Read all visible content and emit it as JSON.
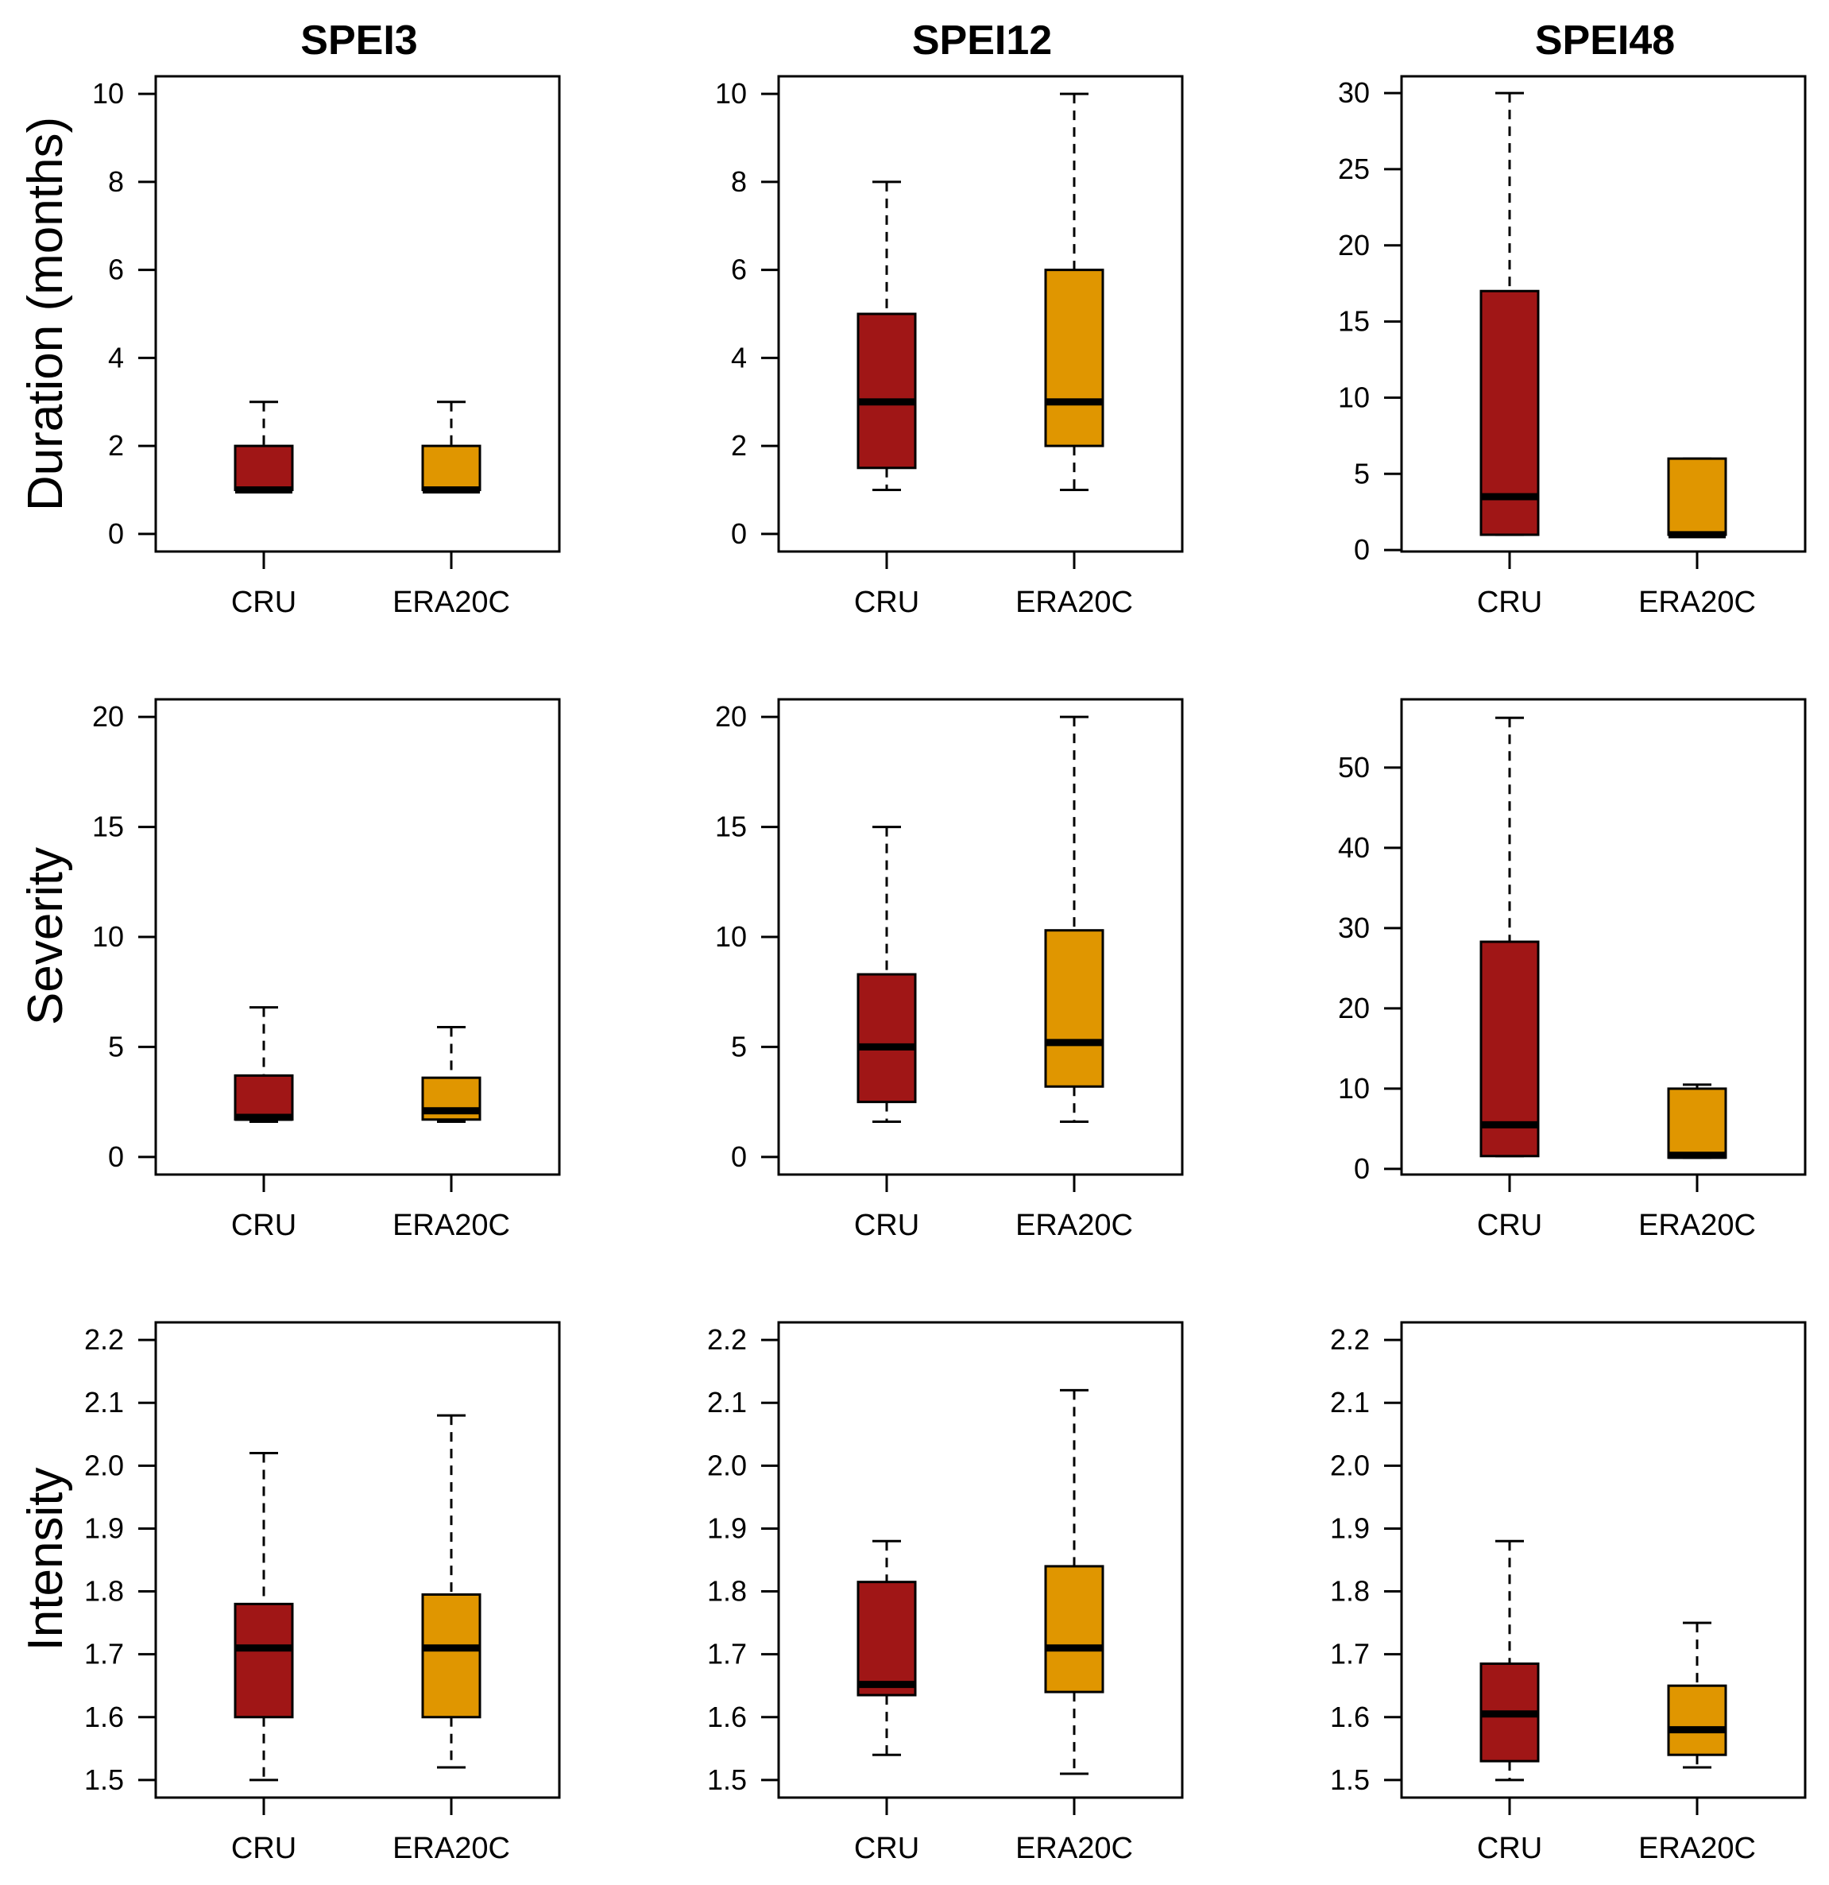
{
  "colors": {
    "CRU": "#a01616",
    "ERA20C": "#e09600",
    "median": "#000000",
    "frame": "#000000"
  },
  "columns": [
    "SPEI3",
    "SPEI12",
    "SPEI48"
  ],
  "rows": [
    "Duration (months)",
    "Severity",
    "Intensity"
  ],
  "chart_data": [
    {
      "type": "boxplot",
      "title": "SPEI3",
      "ylabel": "Duration (months)",
      "categories": [
        "CRU",
        "ERA20C"
      ],
      "ylim": [
        -0.4,
        10.4
      ],
      "yticks": [
        0,
        2,
        4,
        6,
        8,
        10
      ],
      "ytick_labels": [
        "0",
        "2",
        "4",
        "6",
        "8",
        "10"
      ],
      "boxes": [
        {
          "name": "CRU",
          "min": 1,
          "q1": 1,
          "median": 1,
          "q3": 2,
          "max": 3
        },
        {
          "name": "ERA20C",
          "min": 1,
          "q1": 1,
          "median": 1,
          "q3": 2,
          "max": 3
        }
      ]
    },
    {
      "type": "boxplot",
      "title": "SPEI12",
      "ylabel": "",
      "categories": [
        "CRU",
        "ERA20C"
      ],
      "ylim": [
        -0.4,
        10.4
      ],
      "yticks": [
        0,
        2,
        4,
        6,
        8,
        10
      ],
      "ytick_labels": [
        "0",
        "2",
        "4",
        "6",
        "8",
        "10"
      ],
      "boxes": [
        {
          "name": "CRU",
          "min": 1,
          "q1": 1.5,
          "median": 3,
          "q3": 5,
          "max": 8
        },
        {
          "name": "ERA20C",
          "min": 1,
          "q1": 2,
          "median": 3,
          "q3": 6,
          "max": 10
        }
      ]
    },
    {
      "type": "boxplot",
      "title": "SPEI48",
      "ylabel": "",
      "categories": [
        "CRU",
        "ERA20C"
      ],
      "ylim": [
        -0.1,
        31.1
      ],
      "yticks": [
        0,
        5,
        10,
        15,
        20,
        25,
        30
      ],
      "ytick_labels": [
        "0",
        "5",
        "10",
        "15",
        "20",
        "25",
        "30"
      ],
      "boxes": [
        {
          "name": "CRU",
          "min": 1,
          "q1": 1,
          "median": 3.5,
          "q3": 17,
          "max": 30
        },
        {
          "name": "ERA20C",
          "min": 1,
          "q1": 1,
          "median": 1,
          "q3": 6,
          "max": 6
        }
      ]
    },
    {
      "type": "boxplot",
      "title": "",
      "ylabel": "Severity",
      "categories": [
        "CRU",
        "ERA20C"
      ],
      "ylim": [
        -0.8,
        20.8
      ],
      "yticks": [
        0,
        5,
        10,
        15,
        20
      ],
      "ytick_labels": [
        "0",
        "5",
        "10",
        "15",
        "20"
      ],
      "boxes": [
        {
          "name": "CRU",
          "min": 1.6,
          "q1": 1.7,
          "median": 1.8,
          "q3": 3.7,
          "max": 6.8
        },
        {
          "name": "ERA20C",
          "min": 1.6,
          "q1": 1.7,
          "median": 2.1,
          "q3": 3.6,
          "max": 5.9
        }
      ]
    },
    {
      "type": "boxplot",
      "title": "",
      "ylabel": "",
      "categories": [
        "CRU",
        "ERA20C"
      ],
      "ylim": [
        -0.8,
        20.8
      ],
      "yticks": [
        0,
        5,
        10,
        15,
        20
      ],
      "ytick_labels": [
        "0",
        "5",
        "10",
        "15",
        "20"
      ],
      "boxes": [
        {
          "name": "CRU",
          "min": 1.6,
          "q1": 2.5,
          "median": 5,
          "q3": 8.3,
          "max": 15
        },
        {
          "name": "ERA20C",
          "min": 1.6,
          "q1": 3.2,
          "median": 5.2,
          "q3": 10.3,
          "max": 20
        }
      ]
    },
    {
      "type": "boxplot",
      "title": "",
      "ylabel": "",
      "categories": [
        "CRU",
        "ERA20C"
      ],
      "ylim": [
        -0.7,
        58.5
      ],
      "yticks": [
        0,
        10,
        20,
        30,
        40,
        50
      ],
      "ytick_labels": [
        "0",
        "10",
        "20",
        "30",
        "40",
        "50"
      ],
      "boxes": [
        {
          "name": "CRU",
          "min": 1.6,
          "q1": 1.6,
          "median": 5.5,
          "q3": 28.3,
          "max": 56.2
        },
        {
          "name": "ERA20C",
          "min": 1.4,
          "q1": 1.4,
          "median": 1.7,
          "q3": 10,
          "max": 10.5
        }
      ]
    },
    {
      "type": "boxplot",
      "title": "",
      "ylabel": "Intensity",
      "categories": [
        "CRU",
        "ERA20C"
      ],
      "ylim": [
        1.472,
        2.228
      ],
      "yticks": [
        1.5,
        1.6,
        1.7,
        1.8,
        1.9,
        2.0,
        2.1,
        2.2
      ],
      "ytick_labels": [
        "1.5",
        "1.6",
        "1.7",
        "1.8",
        "1.9",
        "2.0",
        "2.1",
        "2.2"
      ],
      "boxes": [
        {
          "name": "CRU",
          "min": 1.5,
          "q1": 1.6,
          "median": 1.71,
          "q3": 1.78,
          "max": 2.02
        },
        {
          "name": "ERA20C",
          "min": 1.52,
          "q1": 1.6,
          "median": 1.71,
          "q3": 1.795,
          "max": 2.08
        }
      ]
    },
    {
      "type": "boxplot",
      "title": "",
      "ylabel": "",
      "categories": [
        "CRU",
        "ERA20C"
      ],
      "ylim": [
        1.472,
        2.228
      ],
      "yticks": [
        1.5,
        1.6,
        1.7,
        1.8,
        1.9,
        2.0,
        2.1,
        2.2
      ],
      "ytick_labels": [
        "1.5",
        "1.6",
        "1.7",
        "1.8",
        "1.9",
        "2.0",
        "2.1",
        "2.2"
      ],
      "boxes": [
        {
          "name": "CRU",
          "min": 1.54,
          "q1": 1.635,
          "median": 1.652,
          "q3": 1.815,
          "max": 1.88
        },
        {
          "name": "ERA20C",
          "min": 1.51,
          "q1": 1.64,
          "median": 1.71,
          "q3": 1.84,
          "max": 2.12
        }
      ]
    },
    {
      "type": "boxplot",
      "title": "",
      "ylabel": "",
      "categories": [
        "CRU",
        "ERA20C"
      ],
      "ylim": [
        1.472,
        2.228
      ],
      "yticks": [
        1.5,
        1.6,
        1.7,
        1.8,
        1.9,
        2.0,
        2.1,
        2.2
      ],
      "ytick_labels": [
        "1.5",
        "1.6",
        "1.7",
        "1.8",
        "1.9",
        "2.0",
        "2.1",
        "2.2"
      ],
      "boxes": [
        {
          "name": "CRU",
          "min": 1.5,
          "q1": 1.53,
          "median": 1.605,
          "q3": 1.685,
          "max": 1.88
        },
        {
          "name": "ERA20C",
          "min": 1.52,
          "q1": 1.54,
          "median": 1.58,
          "q3": 1.65,
          "max": 1.75
        }
      ]
    }
  ]
}
